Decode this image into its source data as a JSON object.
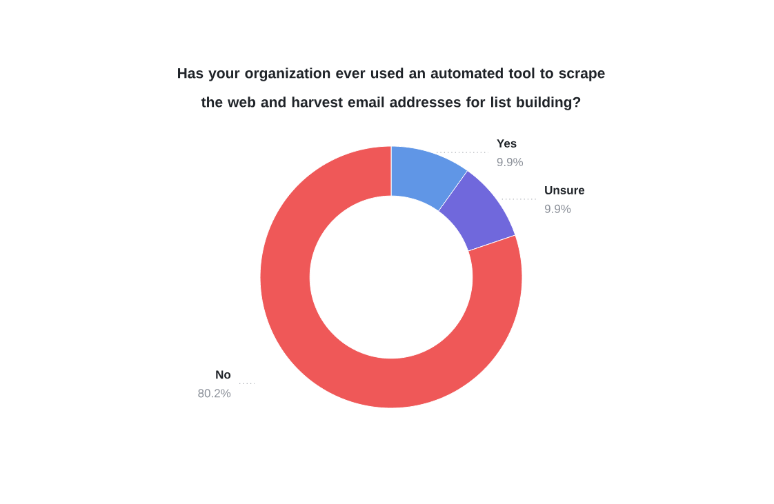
{
  "chart_data": {
    "type": "donut",
    "title": "Has your organization ever used an automated tool to scrape the web and harvest email addresses for list building?",
    "categories": [
      "Yes",
      "Unsure",
      "No"
    ],
    "values": [
      9.9,
      9.9,
      80.2
    ],
    "colors": [
      "#6096e6",
      "#7068dc",
      "#ef5858"
    ],
    "value_labels": [
      "9.9%",
      "9.9%",
      "80.2%"
    ]
  }
}
